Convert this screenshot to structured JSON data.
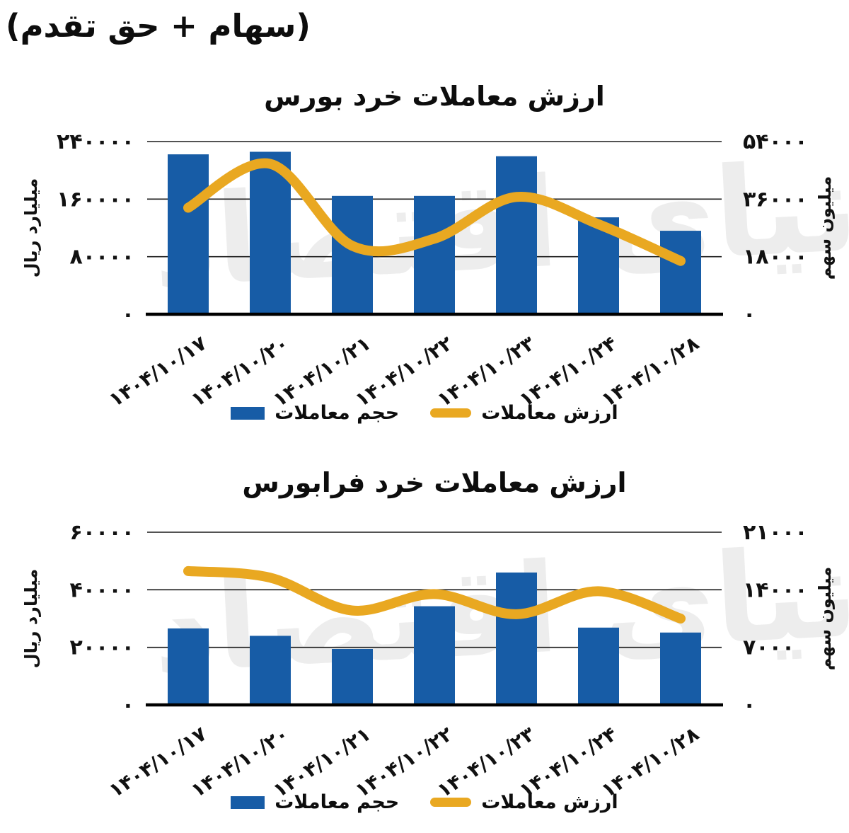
{
  "page": {
    "title": "(سهام + حق تقدم)"
  },
  "watermark": "دنیای اقتصاد",
  "legend": {
    "volume_label": "حجم معاملات",
    "value_label": "ارزش معاملات"
  },
  "colors": {
    "bar_blue": "#175CA6",
    "line_yellow": "#E9A821",
    "grid": "#1a1a1a",
    "axis": "#000000",
    "text": "#111111"
  },
  "chart_data": [
    {
      "id": "bourse",
      "type": "bar",
      "subtype": "bar+smooth-line combo, dual axis",
      "title": "ارزش معاملات خرد بورس",
      "categories": [
        "۱۴۰۴/۱۰/۱۷",
        "۱۴۰۴/۱۰/۲۰",
        "۱۴۰۴/۱۰/۲۱",
        "۱۴۰۴/۱۰/۲۲",
        "۱۴۰۴/۱۰/۲۳",
        "۱۴۰۴/۱۰/۲۴",
        "۱۴۰۴/۱۰/۲۸"
      ],
      "series": [
        {
          "name": "حجم معاملات",
          "type": "bar",
          "axis": "right",
          "values": [
            50000,
            50800,
            37000,
            37000,
            49400,
            30300,
            26100
          ]
        },
        {
          "name": "ارزش معاملات",
          "type": "line",
          "axis": "left",
          "values": [
            148000,
            209000,
            95000,
            105000,
            163000,
            125000,
            74000
          ]
        }
      ],
      "axes": {
        "left": {
          "title": "میلیارد ریال",
          "min": 0,
          "max": 240000,
          "ticks": [
            0,
            80000,
            160000,
            240000
          ],
          "tick_labels": [
            "۰",
            "۸۰۰۰۰",
            "۱۶۰۰۰۰",
            "۲۴۰۰۰۰"
          ]
        },
        "right": {
          "title": "میلیون سهم",
          "min": 0,
          "max": 54000,
          "ticks": [
            0,
            18000,
            36000,
            54000
          ],
          "tick_labels": [
            "۰",
            "۱۸۰۰۰",
            "۳۶۰۰۰",
            "۵۴۰۰۰"
          ]
        }
      },
      "grid": true,
      "legend_position": "bottom"
    },
    {
      "id": "farabourse",
      "type": "bar",
      "subtype": "bar+smooth-line combo, dual axis",
      "title": "ارزش معاملات خرد فرابورس",
      "categories": [
        "۱۴۰۴/۱۰/۱۷",
        "۱۴۰۴/۱۰/۲۰",
        "۱۴۰۴/۱۰/۲۱",
        "۱۴۰۴/۱۰/۲۲",
        "۱۴۰۴/۱۰/۲۳",
        "۱۴۰۴/۱۰/۲۴",
        "۱۴۰۴/۱۰/۲۸"
      ],
      "series": [
        {
          "name": "حجم معاملات",
          "type": "bar",
          "axis": "right",
          "values": [
            9300,
            8400,
            6800,
            12000,
            16100,
            9400,
            8800
          ]
        },
        {
          "name": "ارزش معاملات",
          "type": "line",
          "axis": "left",
          "values": [
            46500,
            44200,
            32800,
            38500,
            31500,
            39500,
            30000
          ]
        }
      ],
      "axes": {
        "left": {
          "title": "میلیارد ریال",
          "min": 0,
          "max": 60000,
          "ticks": [
            0,
            20000,
            40000,
            60000
          ],
          "tick_labels": [
            "۰",
            "۲۰۰۰۰",
            "۴۰۰۰۰",
            "۶۰۰۰۰"
          ]
        },
        "right": {
          "title": "میلیون سهم",
          "min": 0,
          "max": 21000,
          "ticks": [
            0,
            7000,
            14000,
            21000
          ],
          "tick_labels": [
            "۰",
            "۷۰۰۰",
            "۱۴۰۰۰",
            "۲۱۰۰۰"
          ]
        }
      },
      "grid": true,
      "legend_position": "bottom"
    }
  ]
}
